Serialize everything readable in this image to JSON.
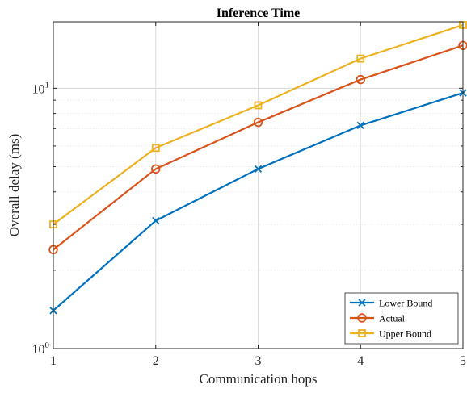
{
  "chart_data": {
    "type": "line",
    "title": "Inference Time",
    "xlabel": "Communication hops",
    "ylabel": "Overall delay (ms)",
    "x": [
      1,
      2,
      3,
      4,
      5
    ],
    "xlim": [
      1,
      5
    ],
    "ylim": [
      1,
      18
    ],
    "yscale": "log",
    "grid": true,
    "legend_position": "bottom-right",
    "xticks": [
      {
        "value": 1,
        "label": "1"
      },
      {
        "value": 2,
        "label": "2"
      },
      {
        "value": 3,
        "label": "3"
      },
      {
        "value": 4,
        "label": "4"
      },
      {
        "value": 5,
        "label": "5"
      }
    ],
    "yticks": [
      {
        "value": 1,
        "base": "10",
        "exp": "0"
      },
      {
        "value": 10,
        "base": "10",
        "exp": "1"
      }
    ],
    "series": [
      {
        "name": "Lower Bound",
        "color": "#0072BD",
        "marker": "x",
        "values": [
          1.4,
          3.1,
          4.9,
          7.2,
          9.6
        ]
      },
      {
        "name": "Actual.",
        "color": "#D95319",
        "marker": "o",
        "values": [
          2.4,
          4.9,
          7.4,
          10.8,
          14.6
        ]
      },
      {
        "name": "Upper Bound",
        "color": "#EDB120",
        "marker": "s",
        "values": [
          3.0,
          5.9,
          8.6,
          13.0,
          17.5
        ]
      }
    ]
  }
}
